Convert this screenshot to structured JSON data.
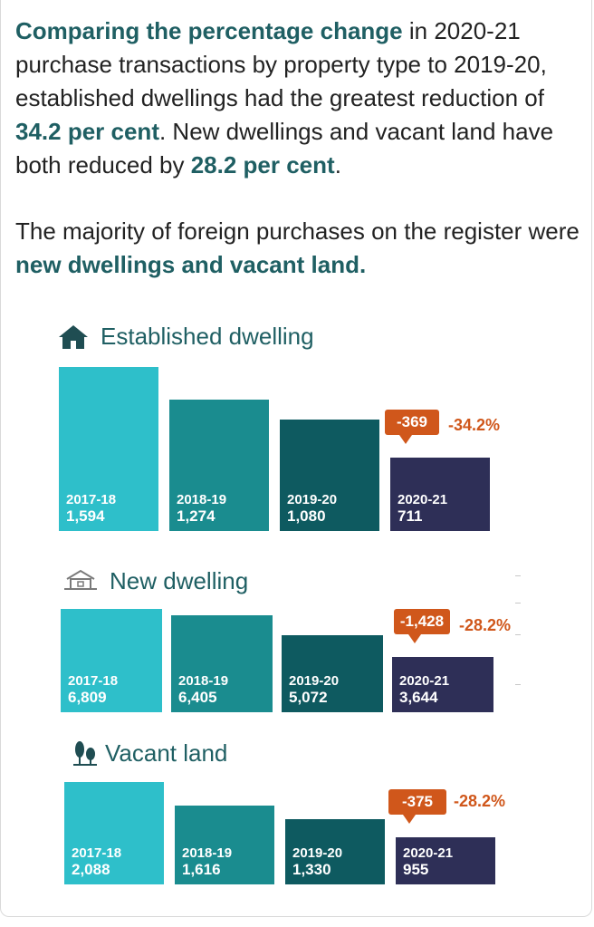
{
  "intro": {
    "p1": [
      {
        "text": "Comparing the percentage change",
        "hl": true
      },
      {
        "text": " in 2020-21 purchase transactions by property type to 2019-20, established dwellings had the greatest reduction of ",
        "hl": false
      },
      {
        "text": "34.2 per cent",
        "hl": true
      },
      {
        "text": ". New dwellings and vacant land have both reduced by ",
        "hl": false
      },
      {
        "text": "28.2 per cent",
        "hl": true
      },
      {
        "text": ".",
        "hl": false
      }
    ],
    "p2": [
      {
        "text": "The majority of foreign purchases on the register were ",
        "hl": false
      },
      {
        "text": "new dwellings and vacant land.",
        "hl": true
      }
    ]
  },
  "colors": {
    "highlight": "#1f5f63",
    "callout": "#d0571b",
    "bars": [
      "#2ebfca",
      "#1a8c8f",
      "#0e5a60",
      "#2e2f57"
    ]
  },
  "chart_data": [
    {
      "type": "bar",
      "title": "Established dwelling",
      "icon": "house-icon",
      "categories": [
        "2017-18",
        "2018-19",
        "2019-20",
        "2020-21"
      ],
      "values": [
        1594,
        1274,
        1080,
        711
      ],
      "value_labels": [
        "1,594",
        "1,274",
        "1,080",
        "711"
      ],
      "change": "-369",
      "change_pct": "-34.2%"
    },
    {
      "type": "bar",
      "title": "New dwelling",
      "icon": "new-house-icon",
      "categories": [
        "2017-18",
        "2018-19",
        "2019-20",
        "2020-21"
      ],
      "values": [
        6809,
        6405,
        5072,
        3644
      ],
      "value_labels": [
        "6,809",
        "6,405",
        "5,072",
        "3,644"
      ],
      "change": "-1,428",
      "change_pct": "-28.2%"
    },
    {
      "type": "bar",
      "title": "Vacant land",
      "icon": "trees-icon",
      "categories": [
        "2017-18",
        "2018-19",
        "2019-20",
        "2020-21"
      ],
      "values": [
        2088,
        1616,
        1330,
        955
      ],
      "value_labels": [
        "2,088",
        "1,616",
        "1,330",
        "955"
      ],
      "change": "-375",
      "change_pct": "-28.2%"
    }
  ]
}
